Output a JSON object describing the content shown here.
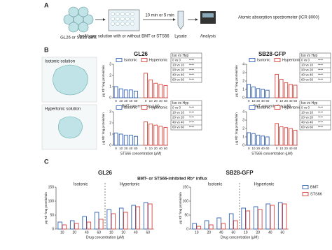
{
  "figure": {
    "panel_labels": [
      "A",
      "B",
      "C"
    ],
    "panel_a": {
      "cells": "GL26 or SB28 cells",
      "solution": "Iso/Hyper solution with or without BMT or STS66",
      "time": "10 min or 5 min",
      "lysate": "Lysate",
      "analysis": "Analysis",
      "instrument": "Atomic absorption spectrometer (ICR 8000)"
    },
    "panel_b": {
      "isotonic": "Isotonic solution",
      "hypertonic": "Hypertonic solution"
    }
  },
  "chart_data": [
    {
      "type": "bar",
      "title": "GL26",
      "categories": [
        "0",
        "10",
        "20",
        "40",
        "60"
      ],
      "series": [
        {
          "name": "Isotonic",
          "color": "#2f5fb3",
          "values": [
            1.0,
            0.8,
            0.7,
            0.7,
            0.6
          ]
        },
        {
          "name": "Hypertonic",
          "color": "#d9413a",
          "values": [
            2.2,
            1.6,
            1.3,
            1.2,
            1.1
          ]
        }
      ],
      "x_label": "BMT concentration (μM)",
      "y_label": "μg Rb⁺/mg protein/min",
      "ylim": [
        0,
        3
      ],
      "yticks": [
        0,
        1,
        2,
        3
      ],
      "legend": "top",
      "table": {
        "header": "Iso vs Hyp",
        "rows": [
          [
            "0 vs 0",
            "****"
          ],
          [
            "10 vs 10",
            "****"
          ],
          [
            "20 vs 20",
            "****"
          ],
          [
            "40 vs 40",
            "****"
          ],
          [
            "60 vs 60",
            "****"
          ]
        ]
      }
    },
    {
      "type": "bar",
      "title": "SB28-GFP",
      "categories": [
        "0",
        "10",
        "20",
        "40",
        "60"
      ],
      "series": [
        {
          "name": "Isotonic",
          "color": "#2f5fb3",
          "values": [
            1.6,
            1.3,
            1.1,
            1.0,
            0.9
          ]
        },
        {
          "name": "Hypertonic",
          "color": "#d9413a",
          "values": [
            2.8,
            2.2,
            1.8,
            1.6,
            1.5
          ]
        }
      ],
      "x_label": "BMT concentration (μM)",
      "y_label": "μg Rb⁺/mg protein/min",
      "ylim": [
        0,
        4
      ],
      "yticks": [
        0,
        1,
        2,
        3,
        4
      ],
      "legend": "top",
      "table": {
        "header": "Iso vs Hyp",
        "rows": [
          [
            "0 vs 0",
            "****"
          ],
          [
            "10 vs 10",
            "****"
          ],
          [
            "20 vs 20",
            "****"
          ],
          [
            "40 vs 40",
            "****"
          ],
          [
            "60 vs 60",
            "****"
          ]
        ]
      }
    },
    {
      "type": "bar",
      "categories": [
        "0",
        "10",
        "20",
        "40",
        "60"
      ],
      "series": [
        {
          "name": "Isotonic",
          "color": "#2f5fb3",
          "values": [
            1.1,
            1.0,
            0.9,
            0.9,
            0.8
          ]
        },
        {
          "name": "Hypertonic",
          "color": "#d9413a",
          "values": [
            2.1,
            1.9,
            1.8,
            1.7,
            1.6
          ]
        }
      ],
      "x_label": "STS66 concentration (μM)",
      "y_label": "μg Rb⁺/mg protein/min",
      "ylim": [
        0,
        3
      ],
      "yticks": [
        0,
        1,
        2,
        3
      ],
      "legend": "top",
      "table": {
        "header": "Iso vs Hyp",
        "rows": [
          [
            "0 vs 0",
            "****"
          ],
          [
            "10 vs 10",
            "****"
          ],
          [
            "20 vs 20",
            "****"
          ],
          [
            "40 vs 40",
            "****"
          ],
          [
            "60 vs 60",
            "****"
          ]
        ]
      }
    },
    {
      "type": "bar",
      "categories": [
        "0",
        "10",
        "20",
        "40",
        "60"
      ],
      "series": [
        {
          "name": "Isotonic",
          "color": "#2f5fb3",
          "values": [
            1.5,
            1.4,
            1.2,
            1.1,
            1.0
          ]
        },
        {
          "name": "Hypertonic",
          "color": "#d9413a",
          "values": [
            2.6,
            2.2,
            2.1,
            2.0,
            1.8
          ]
        }
      ],
      "x_label": "STS66 concentration (μM)",
      "y_label": "μg Rb⁺/mg protein/min",
      "ylim": [
        0,
        4
      ],
      "yticks": [
        0,
        1,
        2,
        3,
        4
      ],
      "legend": "top",
      "table": {
        "header": "Iso vs Hyp",
        "rows": [
          [
            "0 vs 0",
            "****"
          ],
          [
            "10 vs 10",
            "****"
          ],
          [
            "20 vs 20",
            "****"
          ],
          [
            "40 vs 40",
            "****"
          ],
          [
            "60 vs 60",
            "****"
          ]
        ]
      }
    },
    {
      "type": "bar",
      "title": "GL26",
      "subtitle": "BMT- or STS66-inhibited Rb⁺ influx",
      "groups": [
        "Isotonic",
        "Hypertonic"
      ],
      "categories": [
        "10",
        "20",
        "40",
        "60",
        "10",
        "20",
        "40",
        "60"
      ],
      "series": [
        {
          "color": "#2f5fb3",
          "values": [
            25,
            30,
            45,
            60,
            70,
            75,
            85,
            95
          ]
        },
        {
          "color": "#d9413a",
          "values": [
            15,
            20,
            25,
            35,
            55,
            60,
            80,
            90
          ]
        }
      ],
      "x_label": "Drug concentration (μM)",
      "y_label": "μg Rb⁺/mg protein/min",
      "ylim": [
        0,
        150
      ],
      "yticks": [
        0,
        50,
        100,
        150
      ]
    },
    {
      "type": "bar",
      "title": "SB28-GFP",
      "groups": [
        "Isotonic",
        "Hypertonic"
      ],
      "categories": [
        "10",
        "20",
        "40",
        "60",
        "10",
        "20",
        "40",
        "60"
      ],
      "series": [
        {
          "name": "BMT",
          "color": "#2f5fb3",
          "values": [
            20,
            30,
            40,
            55,
            75,
            80,
            90,
            95
          ]
        },
        {
          "name": "STS66",
          "color": "#d9413a",
          "values": [
            10,
            15,
            20,
            30,
            65,
            70,
            85,
            90
          ]
        }
      ],
      "x_label": "Drug concentration (μM)",
      "y_label": "μg Rb⁺/mg protein/min",
      "ylim": [
        0,
        150
      ],
      "yticks": [
        0,
        50,
        100,
        150
      ],
      "legend": "right"
    }
  ]
}
